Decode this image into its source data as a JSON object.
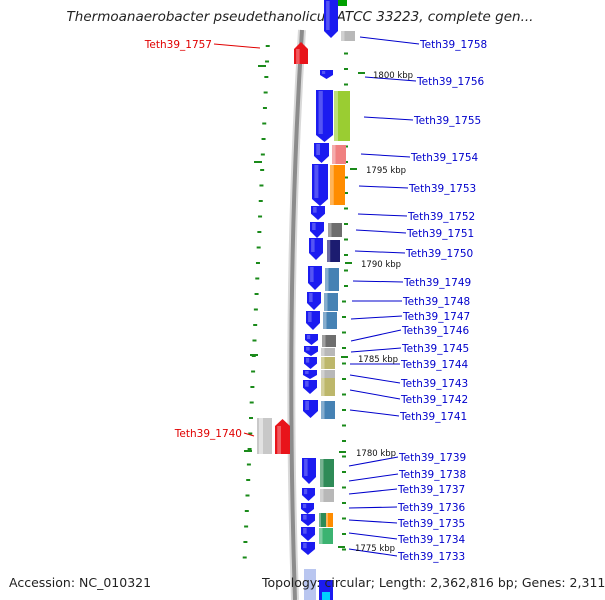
{
  "title": "Thermoanaerobacter pseudethanolicus ATCC 33223, complete gen...",
  "footer": {
    "accession": "Accession: NC_010321",
    "topology": "Topology: circular; Length: 2,362,816 bp; Genes: 2,311"
  },
  "colors": {
    "forward_gene": "#e8141a",
    "reverse_gene": "#1b1bf0",
    "label_forward": "#e00000",
    "label_reverse": "#0000cc",
    "backbone": "#8c8c8c",
    "tick": "#1a8a1a"
  },
  "genes_forward_strand": [
    {
      "label": "Teth39_1757",
      "color": "#e8141a"
    },
    {
      "label": "Teth39_1740",
      "color": "#e8141a"
    }
  ],
  "genes_reverse_strand": [
    {
      "label": "Teth39_1758",
      "color": "#1b1bf0"
    },
    {
      "label": "Teth39_1756",
      "color": "#1b1bf0"
    },
    {
      "label": "Teth39_1755",
      "color": "#1b1bf0"
    },
    {
      "label": "Teth39_1754",
      "color": "#1b1bf0"
    },
    {
      "label": "Teth39_1753",
      "color": "#1b1bf0"
    },
    {
      "label": "Teth39_1752",
      "color": "#1b1bf0"
    },
    {
      "label": "Teth39_1751",
      "color": "#1b1bf0"
    },
    {
      "label": "Teth39_1750",
      "color": "#1b1bf0"
    },
    {
      "label": "Teth39_1749",
      "color": "#1b1bf0"
    },
    {
      "label": "Teth39_1748",
      "color": "#1b1bf0"
    },
    {
      "label": "Teth39_1747",
      "color": "#1b1bf0"
    },
    {
      "label": "Teth39_1746",
      "color": "#1b1bf0"
    },
    {
      "label": "Teth39_1745",
      "color": "#1b1bf0"
    },
    {
      "label": "Teth39_1744",
      "color": "#1b1bf0"
    },
    {
      "label": "Teth39_1743",
      "color": "#1b1bf0"
    },
    {
      "label": "Teth39_1742",
      "color": "#1b1bf0"
    },
    {
      "label": "Teth39_1741",
      "color": "#1b1bf0"
    },
    {
      "label": "Teth39_1739",
      "color": "#1b1bf0"
    },
    {
      "label": "Teth39_1738",
      "color": "#1b1bf0"
    },
    {
      "label": "Teth39_1737",
      "color": "#1b1bf0"
    },
    {
      "label": "Teth39_1736",
      "color": "#1b1bf0"
    },
    {
      "label": "Teth39_1735",
      "color": "#1b1bf0"
    },
    {
      "label": "Teth39_1734",
      "color": "#1b1bf0"
    },
    {
      "label": "Teth39_1733",
      "color": "#1b1bf0"
    }
  ],
  "cog_colors": [
    "#00a000",
    "#b8b8b8",
    "#9acd32",
    "#f08080",
    "#ff8c00",
    "#6e6e6e",
    "#1c1c70",
    "#4682b4",
    "#bdb76b",
    "#2e8b57",
    "#3cb371"
  ],
  "scale_labels": [
    "1800 kbp",
    "1795 kbp",
    "1790 kbp",
    "1785 kbp",
    "1780 kbp",
    "1775 kbp"
  ]
}
